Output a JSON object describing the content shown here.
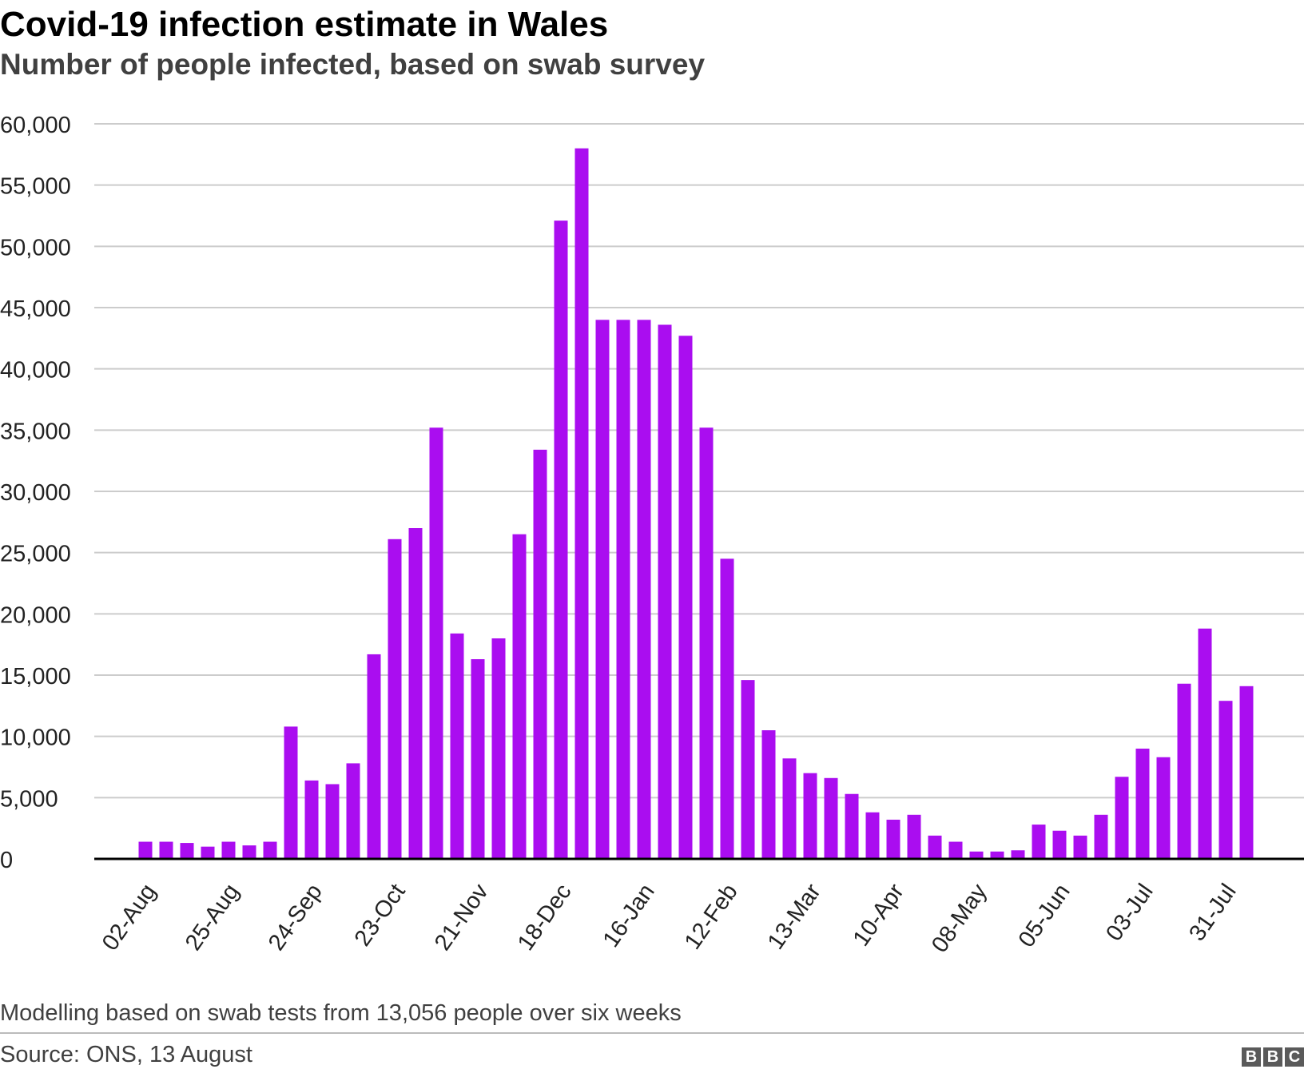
{
  "header": {
    "title": "Covid-19 infection estimate in Wales",
    "subtitle": "Number of people infected, based on swab survey"
  },
  "footer": {
    "note": "Modelling based on swab tests from 13,056 people over six weeks",
    "source": "Source: ONS, 13 August",
    "logo_letters": [
      "B",
      "B",
      "C"
    ]
  },
  "colors": {
    "bar": "#aa0df0",
    "grid": "#cccccc",
    "axis": "#000000",
    "text": "#222222"
  },
  "chart_data": {
    "type": "bar",
    "title": "Covid-19 infection estimate in Wales",
    "xlabel": "",
    "ylabel": "",
    "ylim": [
      0,
      60000
    ],
    "yticks": [
      0,
      5000,
      10000,
      15000,
      20000,
      25000,
      30000,
      35000,
      40000,
      45000,
      50000,
      55000,
      60000
    ],
    "ytick_labels": [
      "0",
      "5,000",
      "10,000",
      "15,000",
      "20,000",
      "25,000",
      "30,000",
      "35,000",
      "40,000",
      "45,000",
      "50,000",
      "55,000",
      "60,000"
    ],
    "xtick_labels": [
      {
        "label": "02-Aug",
        "index": 0
      },
      {
        "label": "25-Aug",
        "index": 4
      },
      {
        "label": "24-Sep",
        "index": 8
      },
      {
        "label": "23-Oct",
        "index": 12
      },
      {
        "label": "21-Nov",
        "index": 16
      },
      {
        "label": "18-Dec",
        "index": 20
      },
      {
        "label": "16-Jan",
        "index": 24
      },
      {
        "label": "12-Feb",
        "index": 28
      },
      {
        "label": "13-Mar",
        "index": 32
      },
      {
        "label": "10-Apr",
        "index": 36
      },
      {
        "label": "08-May",
        "index": 40
      },
      {
        "label": "05-Jun",
        "index": 44
      },
      {
        "label": "03-Jul",
        "index": 48
      },
      {
        "label": "31-Jul",
        "index": 52
      }
    ],
    "grid": true,
    "legend": "none",
    "values": [
      1400,
      1400,
      1300,
      1000,
      1400,
      1100,
      1400,
      10800,
      6400,
      6100,
      7800,
      16700,
      26100,
      27000,
      35200,
      18400,
      16300,
      18000,
      26500,
      33400,
      52100,
      58000,
      44000,
      44000,
      44000,
      43600,
      42700,
      35200,
      24500,
      14600,
      10500,
      8200,
      7000,
      6600,
      5300,
      3800,
      3200,
      3600,
      1900,
      1400,
      600,
      600,
      700,
      2800,
      2300,
      1900,
      3600,
      6700,
      9000,
      8300,
      14300,
      18800,
      12900,
      14100
    ]
  }
}
